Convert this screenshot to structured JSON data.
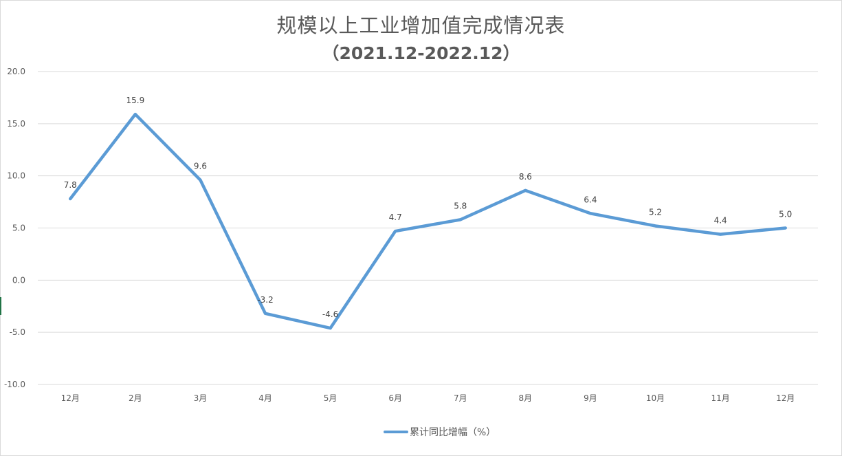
{
  "chart_data": {
    "type": "line",
    "title": "规模以上工业增加值完成情况表",
    "subtitle": "（2021.12-2022.12）",
    "categories": [
      "12月",
      "2月",
      "3月",
      "4月",
      "5月",
      "6月",
      "7月",
      "8月",
      "9月",
      "10月",
      "11月",
      "12月"
    ],
    "series": [
      {
        "name": "累计同比增幅（%）",
        "values": [
          7.8,
          15.9,
          9.6,
          -3.2,
          -4.6,
          4.7,
          5.8,
          8.6,
          6.4,
          5.2,
          4.4,
          5.0
        ],
        "color": "#5b9bd5"
      }
    ],
    "ylim": [
      -10,
      20
    ],
    "yticks": [
      "20.0",
      "15.0",
      "10.0",
      "5.0",
      "0.0",
      "-5.0",
      "-10.0"
    ],
    "grid": true,
    "legend": "bottom",
    "xlabel": "",
    "ylabel": ""
  }
}
